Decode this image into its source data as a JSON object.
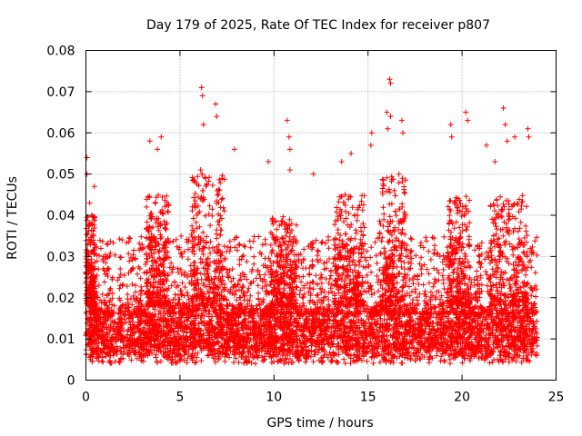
{
  "chart_data": {
    "type": "scatter",
    "title": "Day 179 of 2025, Rate Of TEC Index for receiver p807",
    "xlabel": "GPS time / hours",
    "ylabel": "ROTI / TECUs",
    "xlim": [
      0,
      25
    ],
    "ylim": [
      0,
      0.08
    ],
    "x_ticks": [
      0,
      5,
      10,
      15,
      20,
      25
    ],
    "x_tick_labels": [
      "0",
      "5",
      "10",
      "15",
      "20",
      "25"
    ],
    "y_ticks": [
      0,
      0.01,
      0.02,
      0.03,
      0.04,
      0.05,
      0.06,
      0.07,
      0.08
    ],
    "y_tick_labels": [
      "0",
      "0.01",
      "0.02",
      "0.03",
      "0.04",
      "0.05",
      "0.06",
      "0.07",
      "0.08"
    ],
    "grid": true,
    "marker": "+",
    "marker_color": "#ff0000",
    "series": [
      {
        "name": "ROTI",
        "x_range": [
          0,
          24
        ],
        "baseline": 0.011,
        "typical_max": 0.035,
        "peaks": [
          {
            "x": 0.05,
            "y": 0.054
          },
          {
            "x": 0.05,
            "y": 0.05
          },
          {
            "x": 0.2,
            "y": 0.043
          },
          {
            "x": 0.45,
            "y": 0.047
          },
          {
            "x": 3.4,
            "y": 0.058
          },
          {
            "x": 3.8,
            "y": 0.056
          },
          {
            "x": 4.0,
            "y": 0.059
          },
          {
            "x": 6.1,
            "y": 0.051
          },
          {
            "x": 6.15,
            "y": 0.071
          },
          {
            "x": 6.2,
            "y": 0.069
          },
          {
            "x": 6.25,
            "y": 0.062
          },
          {
            "x": 6.9,
            "y": 0.067
          },
          {
            "x": 6.95,
            "y": 0.064
          },
          {
            "x": 7.9,
            "y": 0.056
          },
          {
            "x": 9.7,
            "y": 0.053
          },
          {
            "x": 10.7,
            "y": 0.063
          },
          {
            "x": 10.8,
            "y": 0.059
          },
          {
            "x": 10.85,
            "y": 0.056
          },
          {
            "x": 10.85,
            "y": 0.051
          },
          {
            "x": 12.1,
            "y": 0.05
          },
          {
            "x": 13.6,
            "y": 0.053
          },
          {
            "x": 14.1,
            "y": 0.055
          },
          {
            "x": 15.2,
            "y": 0.06
          },
          {
            "x": 15.15,
            "y": 0.057
          },
          {
            "x": 16.0,
            "y": 0.065
          },
          {
            "x": 16.05,
            "y": 0.061
          },
          {
            "x": 16.15,
            "y": 0.073
          },
          {
            "x": 16.2,
            "y": 0.072
          },
          {
            "x": 16.2,
            "y": 0.064
          },
          {
            "x": 16.8,
            "y": 0.063
          },
          {
            "x": 16.85,
            "y": 0.06
          },
          {
            "x": 19.4,
            "y": 0.062
          },
          {
            "x": 19.45,
            "y": 0.059
          },
          {
            "x": 20.2,
            "y": 0.065
          },
          {
            "x": 20.3,
            "y": 0.063
          },
          {
            "x": 21.3,
            "y": 0.057
          },
          {
            "x": 21.75,
            "y": 0.053
          },
          {
            "x": 22.2,
            "y": 0.066
          },
          {
            "x": 22.3,
            "y": 0.062
          },
          {
            "x": 22.4,
            "y": 0.058
          },
          {
            "x": 22.8,
            "y": 0.059
          },
          {
            "x": 23.5,
            "y": 0.061
          },
          {
            "x": 23.55,
            "y": 0.059
          }
        ],
        "active_windows": [
          {
            "center": 0.2,
            "width": 0.6,
            "max": 0.04
          },
          {
            "center": 3.8,
            "width": 1.2,
            "max": 0.045
          },
          {
            "center": 6.5,
            "width": 1.8,
            "max": 0.05
          },
          {
            "center": 10.5,
            "width": 1.4,
            "max": 0.04
          },
          {
            "center": 14.0,
            "width": 1.6,
            "max": 0.045
          },
          {
            "center": 16.3,
            "width": 1.4,
            "max": 0.05
          },
          {
            "center": 19.8,
            "width": 1.2,
            "max": 0.045
          },
          {
            "center": 22.5,
            "width": 2.0,
            "max": 0.045
          }
        ]
      }
    ]
  }
}
